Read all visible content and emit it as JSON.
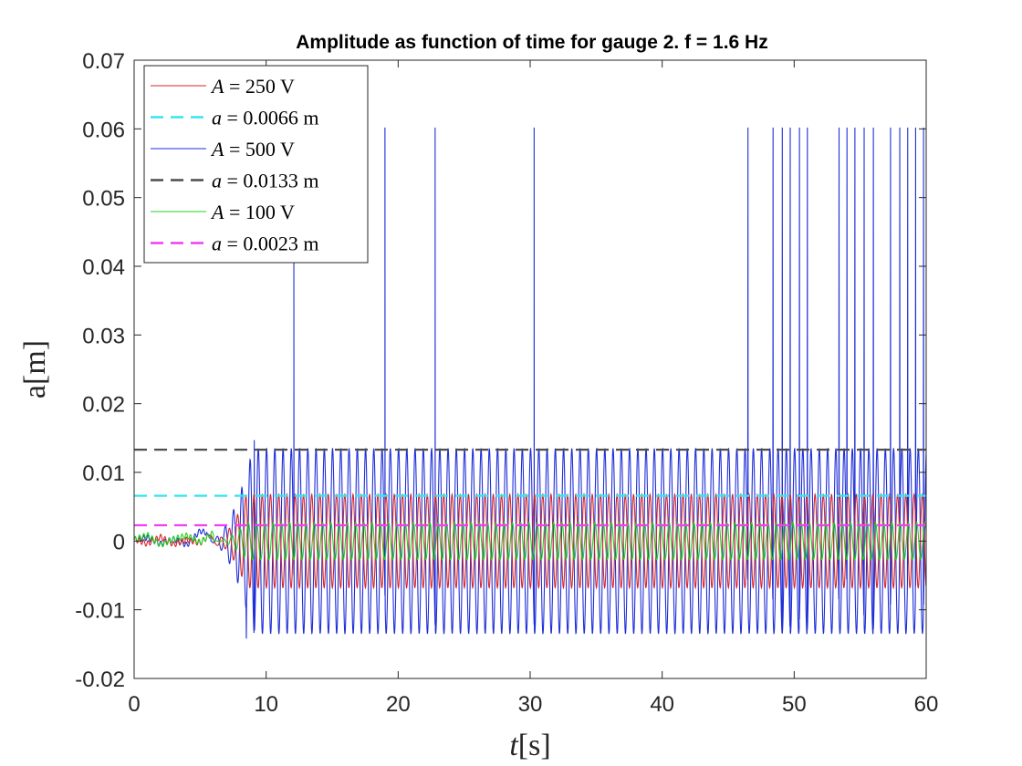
{
  "chart_data": {
    "type": "line",
    "title": "Amplitude as function of time for gauge 2. f = 1.6 Hz",
    "xlabel_var": "t",
    "xlabel_unit": "[s]",
    "ylabel": "a[m]",
    "xlim": [
      0,
      60
    ],
    "ylim": [
      -0.02,
      0.07
    ],
    "xticks": [
      0,
      10,
      20,
      30,
      40,
      50,
      60
    ],
    "xtick_labels": [
      "0",
      "10",
      "20",
      "30",
      "40",
      "50",
      "60"
    ],
    "yticks": [
      -0.02,
      -0.01,
      0,
      0.01,
      0.02,
      0.03,
      0.04,
      0.05,
      0.06,
      0.07
    ],
    "ytick_labels": [
      "-0.02",
      "-0.01",
      "0",
      "0.01",
      "0.02",
      "0.03",
      "0.04",
      "0.05",
      "0.06",
      "0.07"
    ],
    "grid": false,
    "legend_placement": "top-left",
    "oscillation_frequency_hz": 1.6,
    "series": [
      {
        "name": "A = 250 V",
        "kind": "oscillation",
        "color": "#d62728",
        "startup": [
          [
            0,
            0.0003
          ],
          [
            1,
            -0.0004
          ],
          [
            2,
            0.0006
          ],
          [
            3,
            -0.0005
          ],
          [
            4,
            0.0002
          ],
          [
            5,
            -0.0003
          ],
          [
            5.8,
            0.001
          ],
          [
            6.5,
            -0.002
          ]
        ],
        "growth_start": 5.8,
        "steady_from": 8.5,
        "steady_amplitude": 0.0068
      },
      {
        "name": "a = 0.0066 m",
        "kind": "hline",
        "color": "#33e6f0",
        "value": 0.0066,
        "x_range": [
          0,
          60
        ]
      },
      {
        "name": "A = 500 V",
        "kind": "oscillation",
        "color": "#1f2fd8",
        "startup": [
          [
            0,
            0.0002
          ],
          [
            1,
            0.0005
          ],
          [
            2,
            -0.0004
          ],
          [
            3,
            0.0003
          ],
          [
            4,
            -0.0006
          ],
          [
            5,
            0.0015
          ],
          [
            5.8,
            0.001
          ]
        ],
        "growth_start": 5.5,
        "steady_from": 9,
        "steady_amplitude": 0.0135,
        "overshoot": [
          [
            8.5,
            -0.0142
          ],
          [
            9.1,
            0.0147
          ]
        ],
        "spikes": [
          {
            "x": 12.1,
            "y": 0.0405
          },
          {
            "x": 19,
            "y": 0.0602
          },
          {
            "x": 22.8,
            "y": 0.0602
          },
          {
            "x": 30.3,
            "y": 0.0602
          },
          {
            "x": 46.5,
            "y": 0.0602
          },
          {
            "x": 48.4,
            "y": 0.0602
          },
          {
            "x": 49.1,
            "y": 0.0602
          },
          {
            "x": 49.7,
            "y": 0.0602
          },
          {
            "x": 50.4,
            "y": 0.0602
          },
          {
            "x": 51,
            "y": 0.0602
          },
          {
            "x": 53.4,
            "y": 0.0602
          },
          {
            "x": 54,
            "y": 0.0602
          },
          {
            "x": 54.6,
            "y": 0.0602
          },
          {
            "x": 55.3,
            "y": 0.0602
          },
          {
            "x": 56,
            "y": 0.0602
          },
          {
            "x": 57.3,
            "y": 0.0602
          },
          {
            "x": 58,
            "y": 0.0602
          },
          {
            "x": 58.6,
            "y": 0.0602
          },
          {
            "x": 59.2,
            "y": 0.0602
          },
          {
            "x": 59.8,
            "y": 0.0602
          }
        ]
      },
      {
        "name": "a = 0.0133 m",
        "kind": "hline",
        "color": "#4d4d4d",
        "value": 0.0133,
        "x_range": [
          0,
          60
        ]
      },
      {
        "name": "A = 100 V",
        "kind": "oscillation",
        "color": "#22d022",
        "startup": [
          [
            0,
            0.0002
          ],
          [
            1,
            0.0009
          ],
          [
            2,
            -0.0006
          ],
          [
            3,
            0.0003
          ],
          [
            4,
            0.0008
          ],
          [
            5,
            -0.0002
          ],
          [
            6,
            0.0012
          ]
        ],
        "growth_start": 6,
        "steady_from": 8.5,
        "steady_amplitude": 0.0027
      },
      {
        "name": "a = 0.0023 m",
        "kind": "hline",
        "color": "#ef3ff0",
        "value": 0.0023,
        "x_range": [
          0,
          60
        ]
      }
    ]
  }
}
